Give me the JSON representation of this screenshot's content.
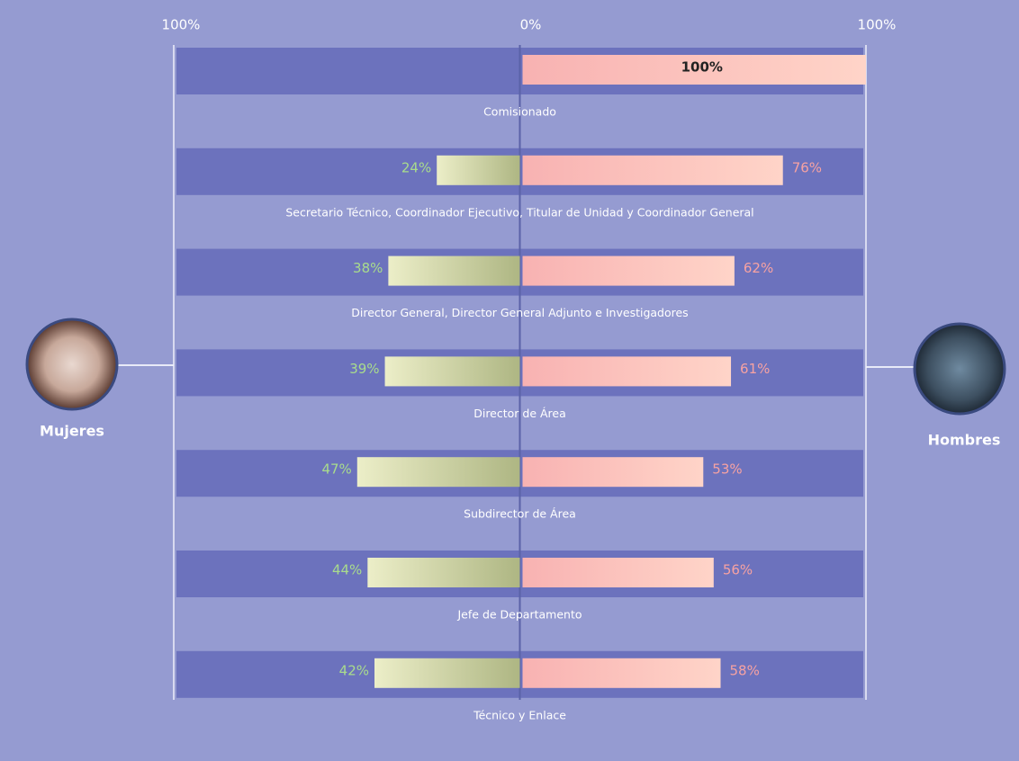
{
  "chart_data": {
    "type": "diverging-bar",
    "categories": [
      "Comisionado",
      "Secretario Técnico, Coordinador Ejecutivo, Titular de Unidad y Coordinador General",
      "Director General, Director General Adjunto e Investigadores",
      "Director de Área",
      "Subdirector de Área",
      "Jefe de Departamento",
      "Técnico y Enlace"
    ],
    "series": [
      {
        "name": "Mujeres",
        "color": "#c9cc9c",
        "values": [
          0,
          24,
          38,
          39,
          47,
          44,
          42
        ],
        "value_labels": [
          null,
          "24%",
          "38%",
          "39%",
          "47%",
          "44%",
          "42%"
        ]
      },
      {
        "name": "Hombres",
        "color": "#fbbcb6",
        "values": [
          100,
          76,
          62,
          61,
          53,
          56,
          58
        ],
        "value_labels": [
          "100%",
          "76%",
          "62%",
          "61%",
          "53%",
          "56%",
          "58%"
        ]
      }
    ],
    "xlim": [
      -100,
      100
    ],
    "xticks": [
      {
        "value": -100,
        "label": "100%"
      },
      {
        "value": 0,
        "label": "0%"
      },
      {
        "value": 100,
        "label": "100%"
      }
    ]
  }
}
